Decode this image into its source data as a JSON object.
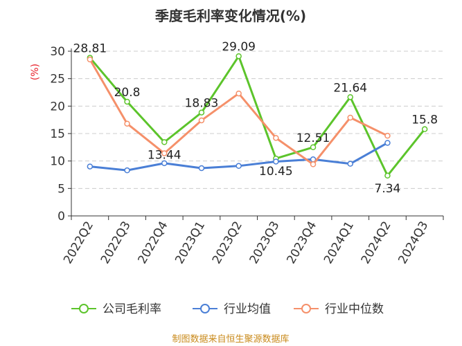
{
  "chart_data": {
    "type": "line",
    "title": "季度毛利率变化情况(%)",
    "ylabel": "(%)",
    "xlabel": "",
    "categories": [
      "2022Q2",
      "2022Q3",
      "2022Q4",
      "2023Q1",
      "2023Q2",
      "2023Q3",
      "2023Q4",
      "2024Q1",
      "2024Q2",
      "2024Q3"
    ],
    "ylim": [
      0,
      30
    ],
    "yticks": [
      0,
      5,
      10,
      15,
      20,
      25,
      30
    ],
    "grid": true,
    "legend_position": "bottom",
    "series": [
      {
        "name": "公司毛利率",
        "color": "#5cc42b",
        "values": [
          28.81,
          20.8,
          13.44,
          18.83,
          29.09,
          10.45,
          12.51,
          21.64,
          7.34,
          15.8
        ],
        "labels": [
          "28.81",
          "20.8",
          "13.44",
          "18.83",
          "29.09",
          "10.45",
          "12.51",
          "21.64",
          "7.34",
          "15.8"
        ]
      },
      {
        "name": "行业均值",
        "color": "#4a7fd6",
        "values": [
          9.0,
          8.3,
          9.6,
          8.7,
          9.1,
          9.9,
          10.3,
          9.5,
          13.3,
          null
        ]
      },
      {
        "name": "行业中位数",
        "color": "#f5906a",
        "values": [
          28.5,
          16.8,
          11.4,
          17.4,
          22.3,
          14.2,
          9.4,
          17.9,
          14.6,
          null
        ]
      }
    ]
  },
  "source_text": "制图数据来自恒生聚源数据库"
}
